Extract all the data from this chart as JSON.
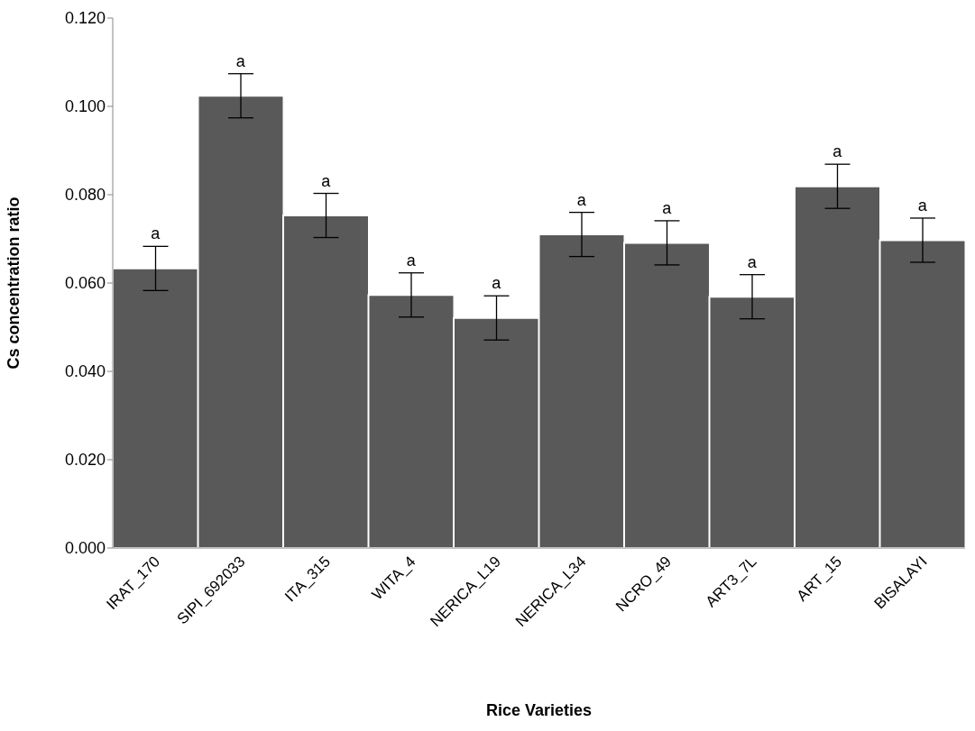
{
  "chart_data": {
    "type": "bar",
    "xlabel": "Rice Varieties",
    "ylabel": "Cs concentration ratio",
    "categories": [
      "IRAT_170",
      "SIPI_692033",
      "ITA_315",
      "WITA_4",
      "NERICA_L19",
      "NERICA_L34",
      "NCRO_49",
      "ART3_7L",
      "ART_15",
      "BISALAYI"
    ],
    "values": [
      0.0633,
      0.1024,
      0.0753,
      0.0573,
      0.0521,
      0.071,
      0.0691,
      0.0569,
      0.0819,
      0.0697
    ],
    "errors": [
      0.005,
      0.005,
      0.005,
      0.005,
      0.005,
      0.005,
      0.005,
      0.005,
      0.005,
      0.005
    ],
    "color": "#595959",
    "ylim": [
      0,
      0.12
    ],
    "yticks": [
      {
        "value": 0,
        "label": "0.000"
      },
      {
        "value": 0.02,
        "label": "0.020"
      },
      {
        "value": 0.04,
        "label": "0.040"
      },
      {
        "value": 0.06,
        "label": "0.060"
      },
      {
        "value": 0.08,
        "label": "0.080"
      },
      {
        "value": 0.1,
        "label": "0.100"
      },
      {
        "value": 0.12,
        "label": "0.120"
      }
    ],
    "annotations": [
      {
        "text": "a",
        "x": "IRAT_170",
        "y": 0.0683
      },
      {
        "text": "a",
        "x": "SIPI_692033",
        "y": 0.1074
      },
      {
        "text": "a",
        "x": "ITA_315",
        "y": 0.0803
      },
      {
        "text": "a",
        "x": "WITA_4",
        "y": 0.0623
      },
      {
        "text": "a",
        "x": "NERICA_L19",
        "y": 0.0571
      },
      {
        "text": "a",
        "x": "NERICA_L34",
        "y": 0.076
      },
      {
        "text": "a",
        "x": "NCRO_49",
        "y": 0.0741
      },
      {
        "text": "a",
        "x": "ART3_7L",
        "y": 0.0619
      },
      {
        "text": "a",
        "x": "ART_15",
        "y": 0.0869
      },
      {
        "text": "a",
        "x": "BISALAYI",
        "y": 0.0747
      }
    ]
  }
}
